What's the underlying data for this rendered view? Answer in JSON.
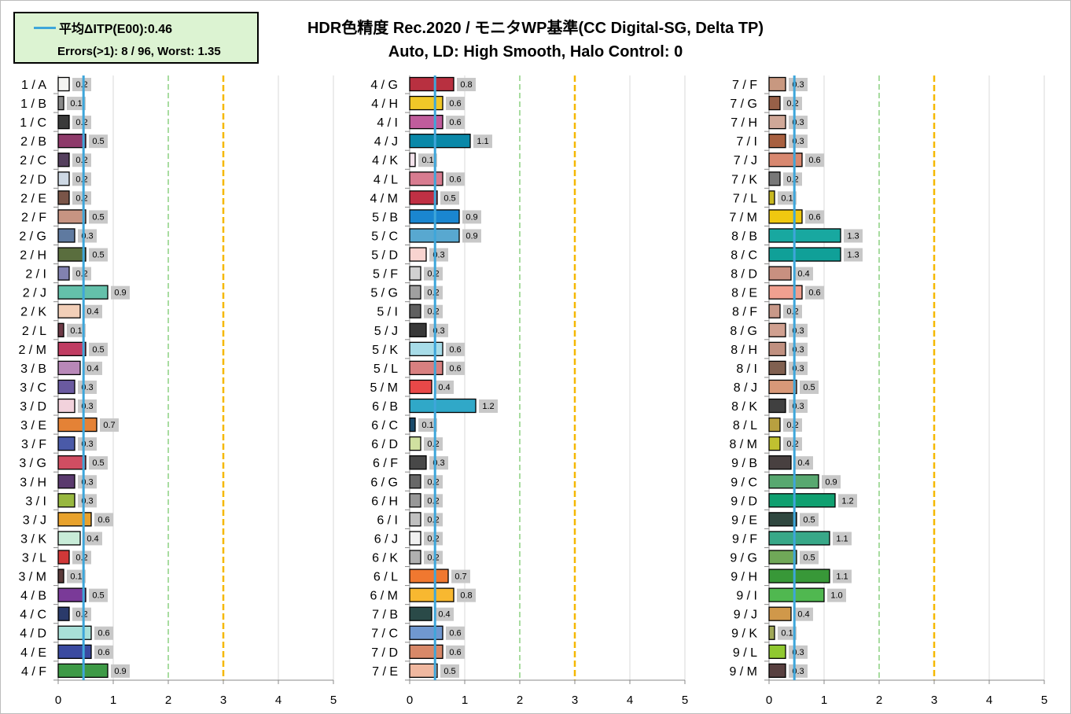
{
  "legend": {
    "mean_label": "平均ΔITP(E00):0.46",
    "errors_label": "Errors(>1): 8 / 96,  Worst: 1.35"
  },
  "title": "HDR色精度 Rec.2020 / モニタWP基準(CC Digital-SG, Delta TP)",
  "subtitle": "Auto, LD: High Smooth, Halo Control: 0",
  "colors": {
    "mean_line": "#3ea6da",
    "threshold_2": "#a8dca0",
    "threshold_3": "#f5b800",
    "label_box": "#c8c8c8",
    "grid": "#d9d9d9"
  },
  "chart_data": {
    "type": "bar",
    "orientation": "horizontal",
    "xlim": [
      0,
      5
    ],
    "xticks": [
      "0",
      "1",
      "2",
      "3",
      "4",
      "5"
    ],
    "mean": 0.46,
    "thresholds": [
      2,
      3
    ],
    "panels": [
      {
        "categories": [
          "1 / A",
          "1 / B",
          "1 / C",
          "2 / B",
          "2 / C",
          "2 / D",
          "2 / E",
          "2 / F",
          "2 / G",
          "2 / H",
          "2 / I",
          "2 / J",
          "2 / K",
          "2 / L",
          "2 / M",
          "3 / B",
          "3 / C",
          "3 / D",
          "3 / E",
          "3 / F",
          "3 / G",
          "3 / H",
          "3 / I",
          "3 / J",
          "3 / K",
          "3 / L",
          "3 / M",
          "4 / B",
          "4 / C",
          "4 / D",
          "4 / E",
          "4 / F"
        ],
        "values": [
          0.2,
          0.1,
          0.2,
          0.5,
          0.2,
          0.2,
          0.2,
          0.5,
          0.3,
          0.5,
          0.2,
          0.9,
          0.4,
          0.1,
          0.5,
          0.4,
          0.3,
          0.3,
          0.7,
          0.3,
          0.5,
          0.3,
          0.3,
          0.6,
          0.4,
          0.2,
          0.1,
          0.5,
          0.2,
          0.6,
          0.6,
          0.9
        ],
        "colors": [
          "#f4f4f2",
          "#8a8a8a",
          "#3a3a3a",
          "#8e3a6a",
          "#55405e",
          "#cdd8e4",
          "#7a5548",
          "#c79482",
          "#5f7aa0",
          "#5a6e3e",
          "#8282b0",
          "#64c0aa",
          "#f2cfb8",
          "#6e3a46",
          "#c03c62",
          "#b888b8",
          "#6a5aa0",
          "#f2d2dc",
          "#e48236",
          "#4a5aa8",
          "#d04e62",
          "#5a3a6e",
          "#98b840",
          "#e8a22c",
          "#c8ecd8",
          "#d03838",
          "#5a3a3a",
          "#7a3a98",
          "#2a3a6a",
          "#a8e0d8",
          "#3a4aa0",
          "#3e9a46"
        ]
      },
      {
        "categories": [
          "4 / G",
          "4 / H",
          "4 / I",
          "4 / J",
          "4 / K",
          "4 / L",
          "4 / M",
          "5 / B",
          "5 / C",
          "5 / D",
          "5 / F",
          "5 / G",
          "5 / I",
          "5 / J",
          "5 / K",
          "5 / L",
          "5 / M",
          "6 / B",
          "6 / C",
          "6 / D",
          "6 / F",
          "6 / G",
          "6 / H",
          "6 / I",
          "6 / J",
          "6 / K",
          "6 / L",
          "6 / M",
          "7 / B",
          "7 / C",
          "7 / D",
          "7 / E"
        ],
        "values": [
          0.8,
          0.6,
          0.6,
          1.1,
          0.1,
          0.6,
          0.5,
          0.9,
          0.9,
          0.3,
          0.2,
          0.2,
          0.2,
          0.3,
          0.6,
          0.6,
          0.4,
          1.2,
          0.1,
          0.2,
          0.3,
          0.2,
          0.2,
          0.2,
          0.2,
          0.2,
          0.7,
          0.8,
          0.4,
          0.6,
          0.6,
          0.5
        ],
        "colors": [
          "#b83040",
          "#f0c828",
          "#c05c9c",
          "#0a88a8",
          "#f4e4ec",
          "#d87c90",
          "#c03044",
          "#1a86d0",
          "#58a8d0",
          "#f8d4d0",
          "#d0d0d0",
          "#a0a0a0",
          "#606060",
          "#383838",
          "#a8dce8",
          "#d88080",
          "#e84848",
          "#30a8c8",
          "#1a4a6a",
          "#d0e0a0",
          "#484848",
          "#686868",
          "#989898",
          "#c0c0c0",
          "#f0f0f0",
          "#b0b0b0",
          "#f07830",
          "#f8b830",
          "#2a4a48",
          "#7098d0",
          "#d88868",
          "#f0b8a0"
        ]
      },
      {
        "categories": [
          "7 / F",
          "7 / G",
          "7 / H",
          "7 / I",
          "7 / J",
          "7 / K",
          "7 / L",
          "7 / M",
          "8 / B",
          "8 / C",
          "8 / D",
          "8 / E",
          "8 / F",
          "8 / G",
          "8 / H",
          "8 / I",
          "8 / J",
          "8 / K",
          "8 / L",
          "8 / M",
          "9 / B",
          "9 / C",
          "9 / D",
          "9 / E",
          "9 / F",
          "9 / G",
          "9 / H",
          "9 / I",
          "9 / J",
          "9 / K",
          "9 / L",
          "9 / M"
        ],
        "values": [
          0.3,
          0.2,
          0.3,
          0.3,
          0.6,
          0.2,
          0.1,
          0.6,
          1.3,
          1.3,
          0.4,
          0.6,
          0.2,
          0.3,
          0.3,
          0.3,
          0.5,
          0.3,
          0.2,
          0.2,
          0.4,
          0.9,
          1.2,
          0.5,
          1.1,
          0.5,
          1.1,
          1.0,
          0.4,
          0.1,
          0.3,
          0.3
        ],
        "colors": [
          "#c89880",
          "#986048",
          "#d0a898",
          "#a86040",
          "#d88870",
          "#787878",
          "#c8b820",
          "#f0c810",
          "#18a8a0",
          "#10a098",
          "#c89080",
          "#f0a090",
          "#c89888",
          "#d0a090",
          "#c09080",
          "#806050",
          "#d89878",
          "#404040",
          "#b8a040",
          "#c0c030",
          "#484040",
          "#58a870",
          "#10a070",
          "#304840",
          "#38a888",
          "#70a858",
          "#389838",
          "#50b850",
          "#d0984a",
          "#a0a858",
          "#90c830",
          "#584040"
        ]
      }
    ]
  }
}
